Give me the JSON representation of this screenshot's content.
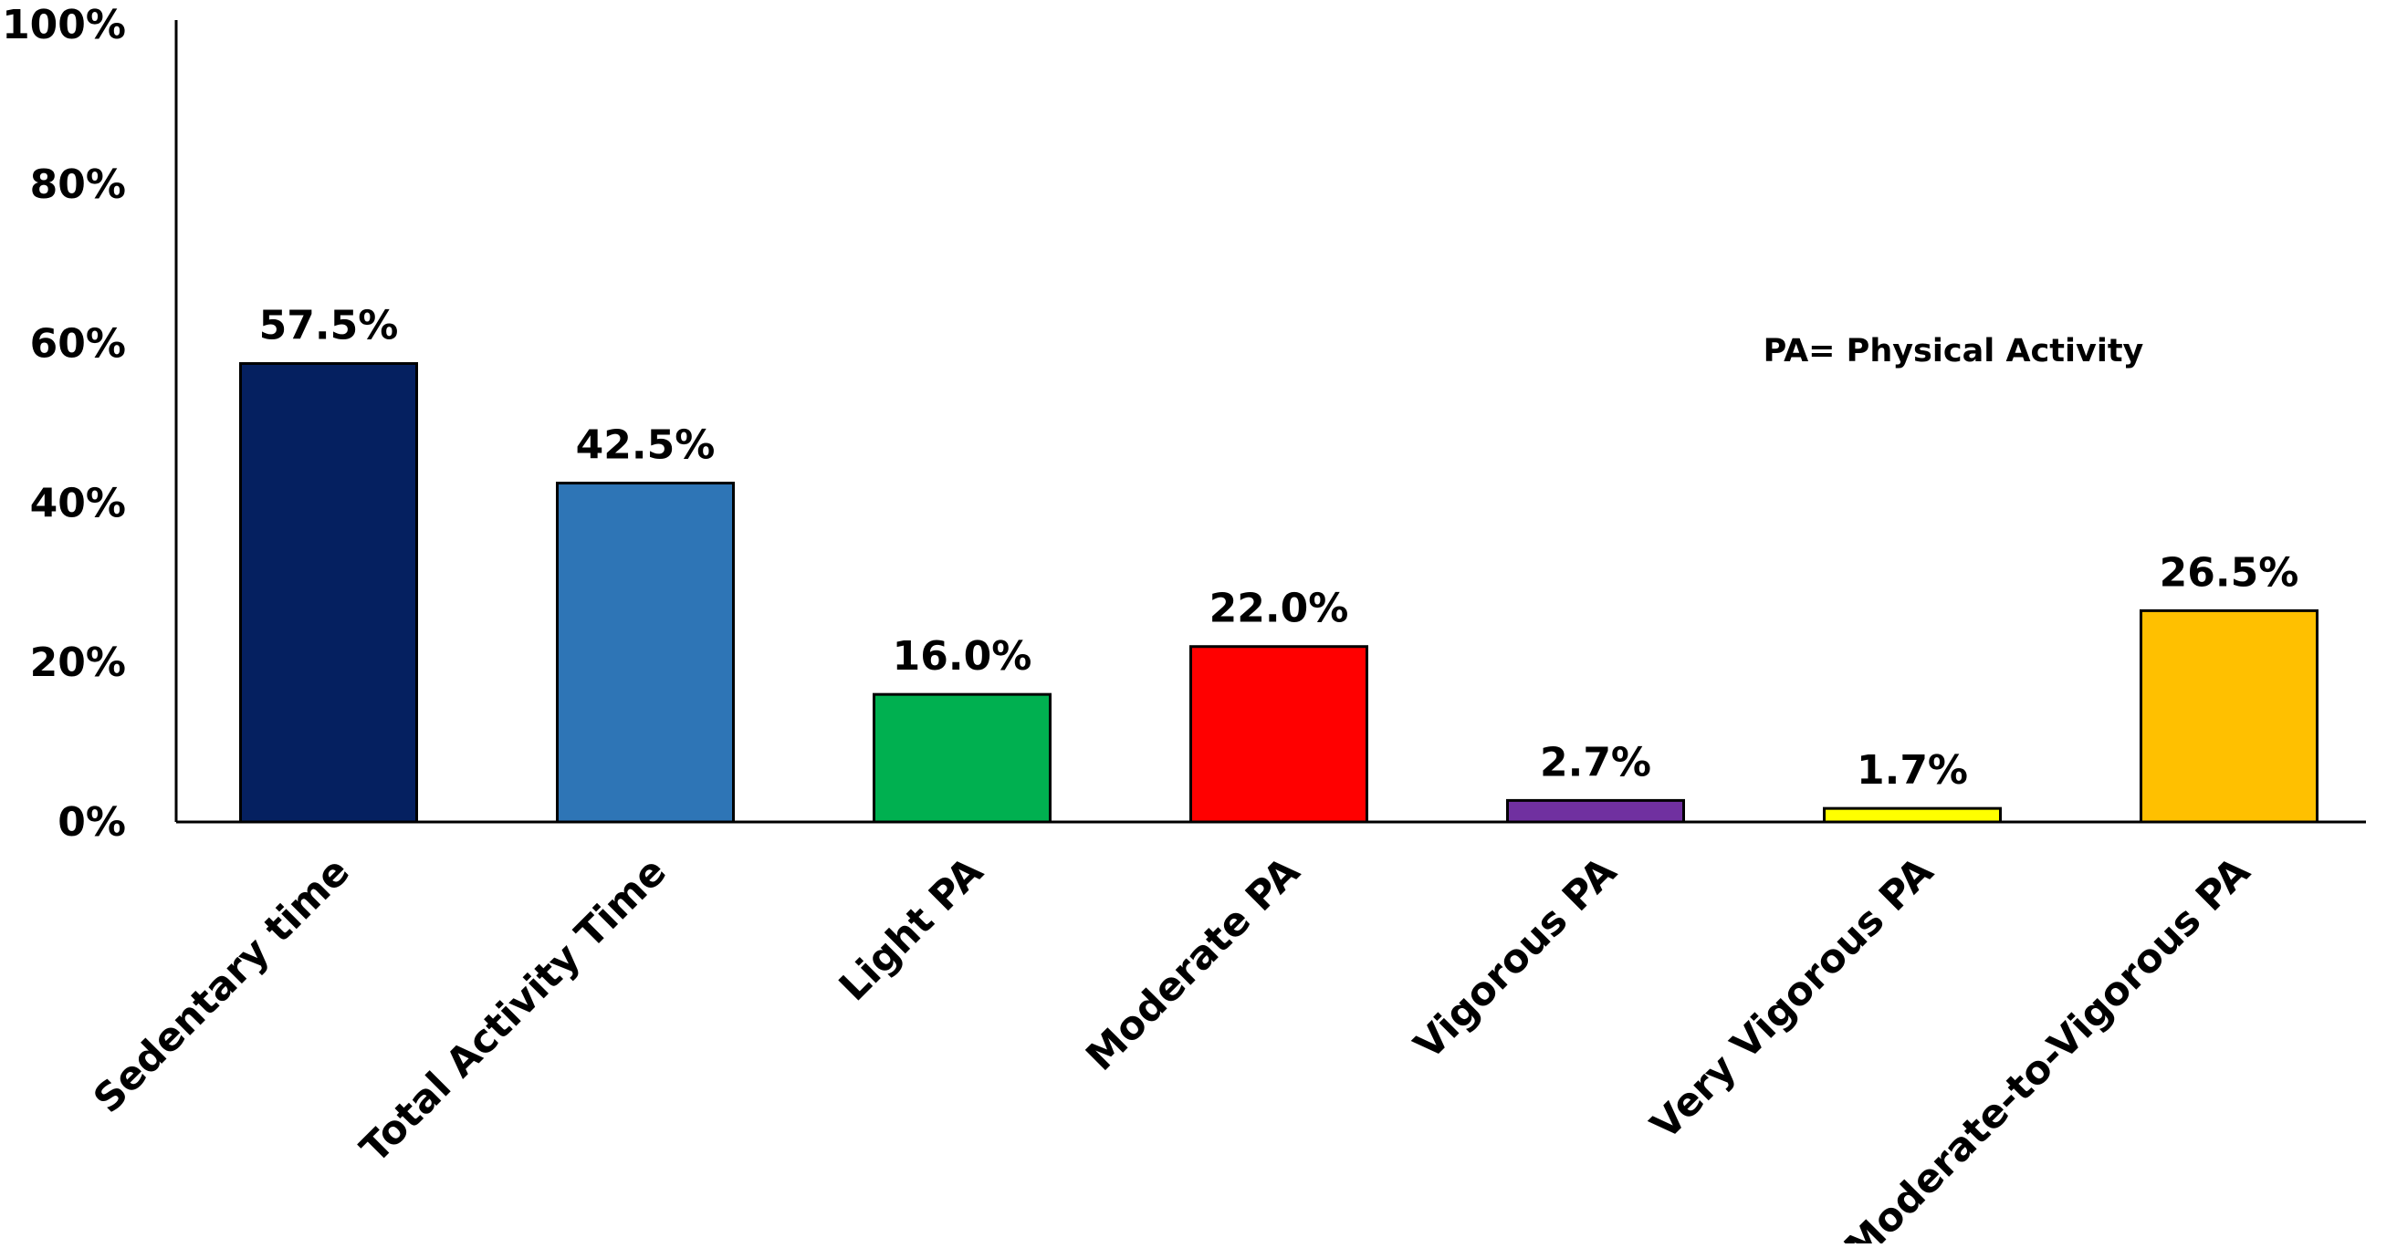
{
  "chart_data": {
    "type": "bar",
    "categories": [
      "Sedentary time",
      "Total Activity Time",
      "Light PA",
      "Moderate PA",
      "Vigorous PA",
      "Very Vigorous PA",
      "Moderate-to-Vigorous PA"
    ],
    "values": [
      57.5,
      42.5,
      16.0,
      22.0,
      2.7,
      1.7,
      26.5
    ],
    "data_labels": [
      "57.5%",
      "42.5%",
      "16.0%",
      "22.0%",
      "2.7%",
      "1.7%",
      "26.5%"
    ],
    "colors": [
      "#052060",
      "#2E75B6",
      "#00B050",
      "#FF0000",
      "#7030A0",
      "#FFFF00",
      "#FFC000"
    ],
    "y_ticks": [
      0,
      20,
      40,
      60,
      80,
      100
    ],
    "y_tick_labels": [
      "0%",
      "20%",
      "40%",
      "60%",
      "80%",
      "100%"
    ],
    "ylim": [
      0,
      100
    ],
    "title": "",
    "xlabel": "",
    "ylabel": "",
    "annotation": "PA= Physical Activity",
    "grid": false,
    "legend": "none"
  }
}
